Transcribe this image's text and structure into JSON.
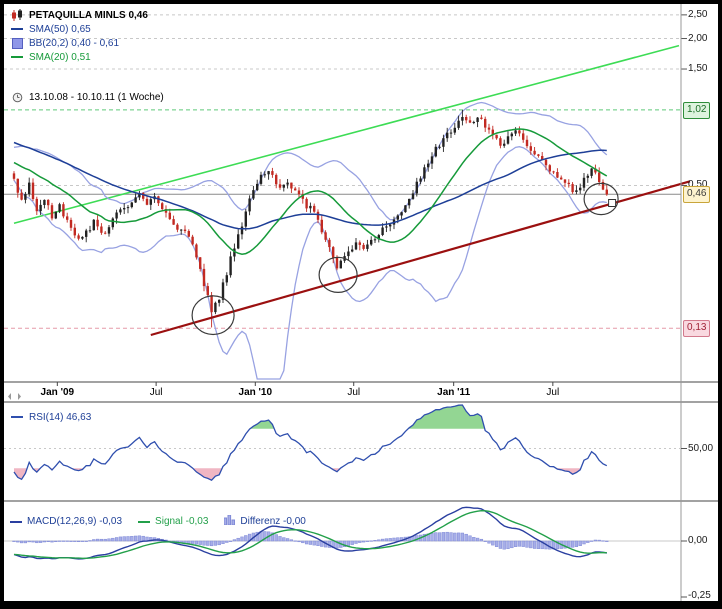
{
  "window": {
    "bg": "#000000",
    "surface": "#ffffff"
  },
  "legend": {
    "symbol": "PETAQUILLA MINLS 0,46",
    "sma50": "SMA(50) 0,65",
    "bb": "BB(20,2) 0,40 - 0,61",
    "sma20": "SMA(20) 0,51",
    "timerange": "13.10.08 - 10.10.11 (1 Woche)"
  },
  "price_axis": {
    "plain_labels": [
      {
        "text": "2,50",
        "price": 2.5
      },
      {
        "text": "2,00",
        "price": 2.0
      },
      {
        "text": "1,50",
        "price": 1.5
      },
      {
        "text": "0,50",
        "price": 0.5
      }
    ],
    "badges": [
      {
        "text": "1,02",
        "price": 1.02,
        "kind": "high"
      },
      {
        "text": "0,46",
        "price": 0.46,
        "kind": "last"
      },
      {
        "text": "0,13",
        "price": 0.13,
        "kind": "low"
      }
    ]
  },
  "x_axis": {
    "labels": [
      {
        "text": "Jan '09",
        "week": 11.4,
        "major": true
      },
      {
        "text": "Jul",
        "week": 37.4,
        "major": false
      },
      {
        "text": "Jan '10",
        "week": 63.5,
        "major": true
      },
      {
        "text": "Jul",
        "week": 89.4,
        "major": false
      },
      {
        "text": "Jan '11",
        "week": 115.7,
        "major": true
      },
      {
        "text": "Jul",
        "week": 141.8,
        "major": false
      }
    ]
  },
  "rsi_panel": {
    "legend": "RSI(14) 46,63",
    "axis_label": "50,00",
    "period": 14,
    "overbought": 70,
    "oversold": 30
  },
  "macd_panel": {
    "legend_macd": "MACD(12,26,9) -0,03",
    "legend_signal": "Signal -0,03",
    "legend_diff": "Differenz -0,00",
    "axis_zero": "0,00",
    "axis_min": "-0,25"
  },
  "colors": {
    "sma50": "#1e3f97",
    "sma20": "#169a3a",
    "bollinger": "#98a2e2",
    "bb_swatch_fill": "#8f97e8",
    "trend_green": "#3ddc55",
    "trend_red": "#9b1010",
    "candle_up": "#222222",
    "candle_down": "#c22a22",
    "rsi_line": "#2f4fae",
    "rsi_over": "#93d693",
    "rsi_under": "#f0b6c3",
    "macd_line": "#2a3fa0",
    "signal_line": "#23a04a",
    "hist_fill": "#a7aee8",
    "hist_stroke": "#7f89d6",
    "grid": "#c8c8c8",
    "grid_green": "#5fc97a",
    "grid_red": "#e59aa8",
    "last_price_line": "#8a8a8a",
    "separator": "#444444",
    "axis_vline": "#999999",
    "badge_high_bg": "#def3de",
    "badge_high_border": "#2f8d3a",
    "badge_high_text": "#1d6e28",
    "badge_last_bg": "#fdf3cf",
    "badge_last_border": "#c9a53a",
    "badge_last_text": "#3a3a3a",
    "badge_low_bg": "#f9d9e0",
    "badge_low_border": "#d2798c",
    "badge_low_text": "#a12338"
  },
  "chart_data": {
    "type": "candlestick",
    "instrument": "PETAQUILLA MINLS",
    "interval": "1 Woche",
    "range": "13.10.08 - 10.10.11",
    "last_price": 0.46,
    "scale": "log",
    "weeks": 157,
    "y_axis_labels": [
      2.5,
      2.0,
      1.5,
      1.02,
      0.5,
      0.46,
      0.13
    ],
    "close_keypoints": [
      [
        0,
        0.52
      ],
      [
        2,
        0.44
      ],
      [
        4,
        0.5
      ],
      [
        6,
        0.38
      ],
      [
        8,
        0.44
      ],
      [
        10,
        0.37
      ],
      [
        12,
        0.41
      ],
      [
        15,
        0.33
      ],
      [
        18,
        0.3
      ],
      [
        21,
        0.35
      ],
      [
        24,
        0.32
      ],
      [
        27,
        0.38
      ],
      [
        30,
        0.42
      ],
      [
        33,
        0.46
      ],
      [
        35,
        0.41
      ],
      [
        37,
        0.44
      ],
      [
        40,
        0.38
      ],
      [
        43,
        0.33
      ],
      [
        46,
        0.31
      ],
      [
        49,
        0.22
      ],
      [
        52,
        0.155
      ],
      [
        54,
        0.17
      ],
      [
        56,
        0.22
      ],
      [
        58,
        0.28
      ],
      [
        60,
        0.33
      ],
      [
        62,
        0.44
      ],
      [
        64,
        0.52
      ],
      [
        66,
        0.57
      ],
      [
        68,
        0.54
      ],
      [
        70,
        0.49
      ],
      [
        72,
        0.52
      ],
      [
        74,
        0.47
      ],
      [
        76,
        0.43
      ],
      [
        78,
        0.4
      ],
      [
        80,
        0.36
      ],
      [
        82,
        0.3
      ],
      [
        84,
        0.25
      ],
      [
        85,
        0.225
      ],
      [
        87,
        0.26
      ],
      [
        90,
        0.29
      ],
      [
        93,
        0.28
      ],
      [
        96,
        0.32
      ],
      [
        99,
        0.35
      ],
      [
        102,
        0.4
      ],
      [
        105,
        0.48
      ],
      [
        108,
        0.58
      ],
      [
        110,
        0.68
      ],
      [
        112,
        0.74
      ],
      [
        114,
        0.8
      ],
      [
        116,
        0.88
      ],
      [
        118,
        0.95
      ],
      [
        120,
        0.9
      ],
      [
        122,
        0.97
      ],
      [
        124,
        0.88
      ],
      [
        126,
        0.8
      ],
      [
        128,
        0.72
      ],
      [
        130,
        0.78
      ],
      [
        132,
        0.82
      ],
      [
        134,
        0.76
      ],
      [
        136,
        0.7
      ],
      [
        138,
        0.64
      ],
      [
        140,
        0.6
      ],
      [
        142,
        0.57
      ],
      [
        144,
        0.52
      ],
      [
        146,
        0.49
      ],
      [
        148,
        0.47
      ],
      [
        150,
        0.52
      ],
      [
        152,
        0.6
      ],
      [
        154,
        0.53
      ],
      [
        156,
        0.46
      ]
    ],
    "warmup": {
      "weeks": 60,
      "from": 1.05,
      "to": 0.55
    },
    "wick_overrides": {
      "52": {
        "low": 0.131
      },
      "118": {
        "high": 1.02
      }
    },
    "indicators": {
      "sma_fast": 20,
      "sma_slow": 50,
      "bb_period": 20,
      "bb_dev": 2,
      "rsi_period": 14,
      "macd": [
        12,
        26,
        9
      ]
    },
    "trendlines": [
      {
        "name": "ascending-resistance",
        "color": "trend_green",
        "from": {
          "week": 0,
          "price": 0.35
        },
        "to": {
          "week": 175,
          "price": 1.87
        }
      },
      {
        "name": "ascending-support",
        "color": "trend_red",
        "from": {
          "week": 36,
          "price": 0.122
        },
        "to": {
          "week": 177.9,
          "price": 0.52
        }
      }
    ],
    "annotations": {
      "circles": [
        {
          "week": 52.4,
          "price": 0.147,
          "r": 21
        },
        {
          "week": 85.3,
          "price": 0.215,
          "r": 19
        },
        {
          "week": 154.5,
          "price": 0.44,
          "r": 17
        }
      ],
      "handle": {
        "week": 157.4,
        "price": 0.424
      }
    },
    "y_gridlines": {
      "plain": [
        2.5,
        2.0,
        1.5,
        0.5
      ],
      "high": 1.02,
      "low": 0.13,
      "last": 0.46
    }
  }
}
